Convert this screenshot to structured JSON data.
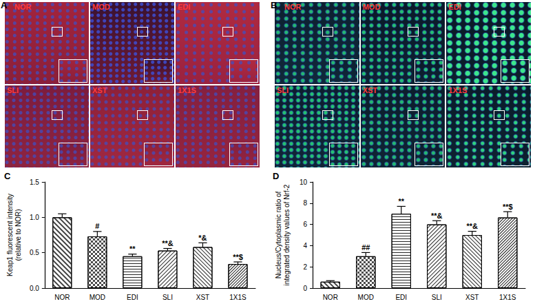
{
  "image_panels": [
    {
      "panel_label": "A",
      "tiles": [
        "NOR",
        "MOD",
        "EDI",
        "SLI",
        "XST",
        "1X1S"
      ]
    },
    {
      "panel_label": "B",
      "tiles": [
        "NOR",
        "MOD",
        "EDI",
        "SLI",
        "XST",
        "1X1S"
      ]
    }
  ],
  "chart_data": [
    {
      "type": "bar",
      "panel_label": "C",
      "y_label": "Keap1 fluorescent intensity\n(relative to NOR)",
      "categories": [
        "NOR",
        "MOD",
        "EDI",
        "SLI",
        "XST",
        "1X1S"
      ],
      "values": [
        1.0,
        0.73,
        0.45,
        0.53,
        0.58,
        0.34
      ],
      "errors": [
        0.05,
        0.07,
        0.03,
        0.03,
        0.06,
        0.03
      ],
      "annotations": [
        null,
        "#",
        "**",
        "**&",
        "*&",
        "**$"
      ],
      "color": "#ffffff",
      "ylim": [
        0,
        1.5
      ],
      "yticks": [
        {
          "value": 0,
          "label": "0.0"
        },
        {
          "value": 0.5,
          "label": "0.5"
        },
        {
          "value": 1,
          "label": "1.0"
        },
        {
          "value": 1.5,
          "label": "1.5"
        }
      ],
      "grid": false
    },
    {
      "type": "bar",
      "panel_label": "D",
      "y_label": "Nucleus/Cytoplasmic ratio of\nintegrated density values of Nrf-2",
      "categories": [
        "NOR",
        "MOD",
        "EDI",
        "SLI",
        "XST",
        "1X1S"
      ],
      "values": [
        0.6,
        3.0,
        7.0,
        6.0,
        5.0,
        6.65
      ],
      "errors": [
        0.1,
        0.35,
        0.7,
        0.35,
        0.35,
        0.55
      ],
      "annotations": [
        null,
        "##",
        "**",
        "**&",
        "**&",
        "**$"
      ],
      "color": "#ffffff",
      "ylim": [
        0,
        10
      ],
      "yticks": [
        0,
        2,
        4,
        6,
        8,
        10
      ],
      "grid": false
    }
  ]
}
